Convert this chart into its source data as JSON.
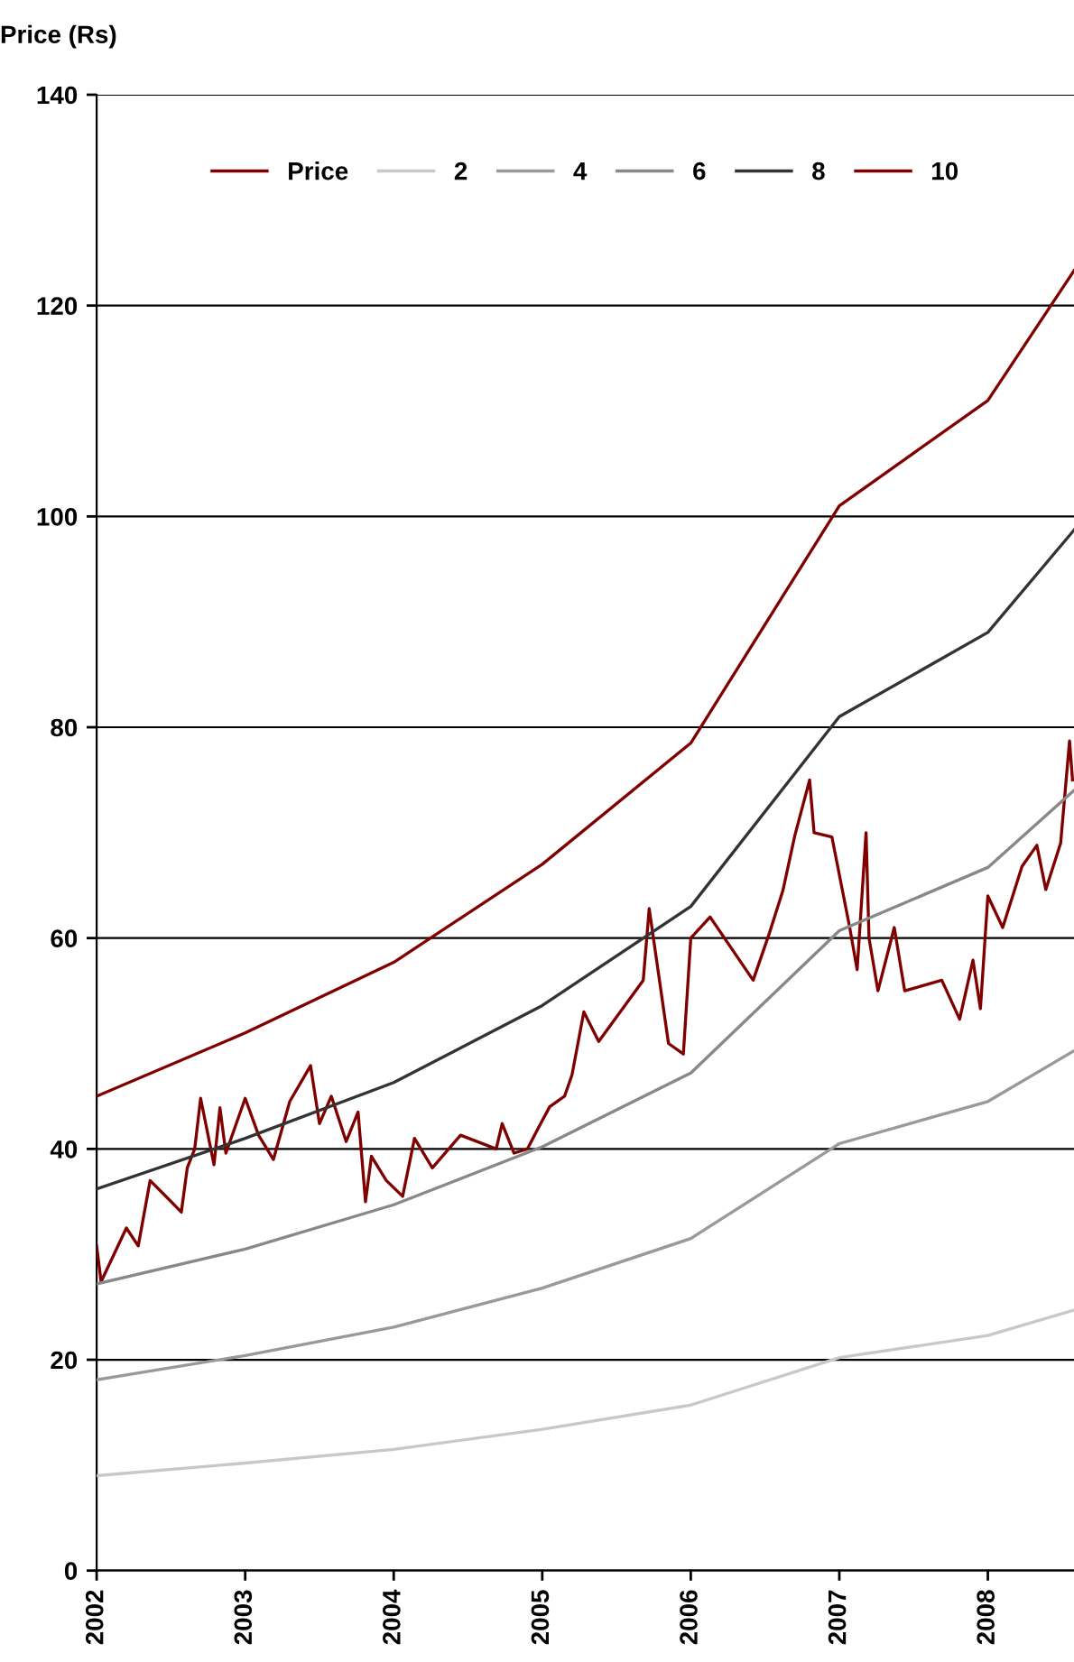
{
  "chart_data": {
    "type": "line",
    "ylabel": "Price (Rs)",
    "xlim": [
      2002,
      2008.58
    ],
    "xticks": [
      2002,
      2003,
      2004,
      2005,
      2006,
      2007,
      2008
    ],
    "ylim": [
      0,
      140
    ],
    "yticks": [
      0,
      20,
      40,
      60,
      80,
      100,
      120,
      140
    ],
    "grid": "y",
    "legend": "top",
    "marker": "none",
    "line_style": "solid",
    "series": [
      {
        "name": "Price",
        "color": "#800000",
        "x": [
          2002.0,
          2002.03,
          2002.2,
          2002.28,
          2002.36,
          2002.48,
          2002.57,
          2002.61,
          2002.66,
          2002.7,
          2002.79,
          2002.83,
          2002.87,
          2003.0,
          2003.09,
          2003.19,
          2003.3,
          2003.44,
          2003.5,
          2003.58,
          2003.68,
          2003.76,
          2003.81,
          2003.85,
          2003.95,
          2004.06,
          2004.14,
          2004.26,
          2004.45,
          2004.69,
          2004.73,
          2004.81,
          2004.9,
          2004.97,
          2005.05,
          2005.15,
          2005.2,
          2005.28,
          2005.38,
          2005.68,
          2005.72,
          2005.85,
          2005.95,
          2006.0,
          2006.13,
          2006.42,
          2006.53,
          2006.62,
          2006.7,
          2006.8,
          2006.83,
          2006.95,
          2007.07,
          2007.12,
          2007.18,
          2007.2,
          2007.26,
          2007.37,
          2007.44,
          2007.69,
          2007.81,
          2007.9,
          2007.95,
          2008.0,
          2008.1,
          2008.23,
          2008.33,
          2008.39,
          2008.49,
          2008.55,
          2008.57
        ],
        "values": [
          30.8,
          27.4,
          32.5,
          30.8,
          37,
          35.3,
          34,
          38.2,
          40,
          44.8,
          38.5,
          43.9,
          39.6,
          44.8,
          41.3,
          39,
          44.5,
          47.9,
          42.4,
          45,
          40.7,
          43.5,
          35,
          39.3,
          37,
          35.5,
          41,
          38.2,
          41.3,
          40,
          42.4,
          39.6,
          40,
          41.9,
          44,
          45,
          47,
          53,
          50.2,
          56,
          62.8,
          50,
          49,
          60,
          62,
          56,
          60.5,
          64.5,
          69.7,
          75,
          70,
          69.6,
          61,
          57,
          70,
          60,
          55,
          61,
          55,
          56,
          52.3,
          57.9,
          53.3,
          64,
          61,
          66.8,
          68.8,
          64.6,
          69,
          78.7,
          75
        ]
      },
      {
        "name": "2",
        "color": "#c8c8c8",
        "x": [
          2002,
          2003,
          2004,
          2005,
          2006,
          2007,
          2008,
          2008.58
        ],
        "values": [
          9,
          10.2,
          11.5,
          13.4,
          15.7,
          20.2,
          22.3,
          24.7
        ]
      },
      {
        "name": "4",
        "color": "#999999",
        "x": [
          2002,
          2003,
          2004,
          2005,
          2006,
          2007,
          2008,
          2008.58
        ],
        "values": [
          18.1,
          20.4,
          23.1,
          26.8,
          31.5,
          40.5,
          44.5,
          49.3
        ]
      },
      {
        "name": "6",
        "color": "#888888",
        "x": [
          2002,
          2003,
          2004,
          2005,
          2006,
          2007,
          2008,
          2008.58
        ],
        "values": [
          27.2,
          30.5,
          34.7,
          40.2,
          47.2,
          60.7,
          66.7,
          74
        ]
      },
      {
        "name": "8",
        "color": "#333333",
        "x": [
          2002,
          2003,
          2004,
          2005,
          2006,
          2007,
          2008,
          2008.58
        ],
        "values": [
          36.2,
          41,
          46.3,
          53.6,
          63,
          81,
          89,
          98.7
        ]
      },
      {
        "name": "10",
        "color": "#800000",
        "x": [
          2002,
          2003,
          2004,
          2005,
          2006,
          2007,
          2008,
          2008.58
        ],
        "values": [
          45,
          51,
          57.7,
          67,
          78.5,
          101,
          111,
          123.3
        ]
      }
    ]
  }
}
